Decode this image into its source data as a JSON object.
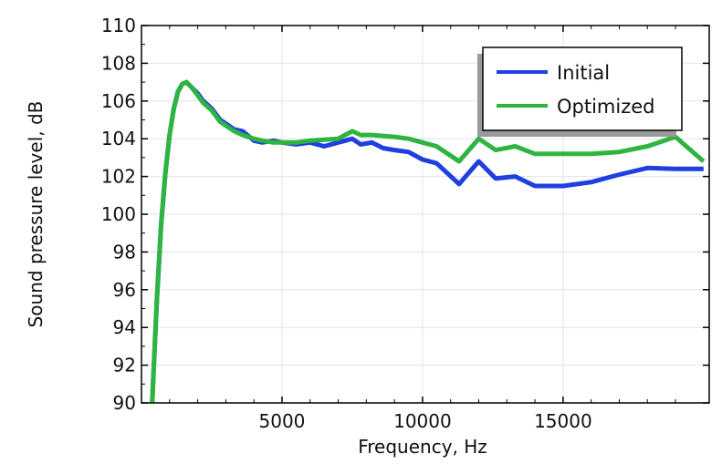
{
  "chart_data": {
    "type": "line",
    "xlabel": "Frequency, Hz",
    "ylabel": "Sound pressure level, dB",
    "xlim": [
      0,
      20200
    ],
    "ylim": [
      90,
      110
    ],
    "xticks": [
      5000,
      10000,
      15000
    ],
    "yticks": [
      90,
      92,
      94,
      96,
      98,
      100,
      102,
      104,
      106,
      108,
      110
    ],
    "grid": true,
    "legend_position": "top-right",
    "series": [
      {
        "name": "Initial",
        "color": "#1f3fe0",
        "x": [
          380,
          550,
          700,
          850,
          1000,
          1150,
          1300,
          1450,
          1600,
          1800,
          2000,
          2200,
          2500,
          2800,
          3000,
          3300,
          3600,
          4000,
          4300,
          4700,
          5000,
          5500,
          6000,
          6500,
          7000,
          7500,
          7800,
          8200,
          8600,
          9000,
          9500,
          10000,
          10500,
          11300,
          12000,
          12600,
          13300,
          14000,
          15000,
          16000,
          17000,
          18000,
          19000,
          20000
        ],
        "y": [
          90,
          95.5,
          99.5,
          102.2,
          104.2,
          105.6,
          106.5,
          106.9,
          107.0,
          106.7,
          106.4,
          106.0,
          105.6,
          105.0,
          104.8,
          104.5,
          104.4,
          103.9,
          103.8,
          103.9,
          103.8,
          103.7,
          103.8,
          103.6,
          103.8,
          104.0,
          103.7,
          103.8,
          103.5,
          103.4,
          103.3,
          102.9,
          102.7,
          101.6,
          102.8,
          101.9,
          102.0,
          101.5,
          101.5,
          101.7,
          102.1,
          102.45,
          102.4,
          102.4
        ]
      },
      {
        "name": "Optimized",
        "color": "#2db540",
        "x": [
          380,
          550,
          700,
          850,
          1000,
          1150,
          1300,
          1450,
          1600,
          1800,
          2000,
          2200,
          2500,
          2800,
          3000,
          3300,
          3600,
          4000,
          4300,
          4700,
          5000,
          5500,
          6000,
          6500,
          7000,
          7500,
          7800,
          8200,
          8600,
          9000,
          9500,
          10000,
          10500,
          11300,
          12000,
          12600,
          13300,
          14000,
          15000,
          16000,
          17000,
          18000,
          19000,
          20000
        ],
        "y": [
          90,
          95.5,
          99.5,
          102.2,
          104.2,
          105.6,
          106.5,
          106.9,
          107.0,
          106.7,
          106.3,
          105.9,
          105.5,
          104.9,
          104.7,
          104.4,
          104.2,
          104.0,
          103.9,
          103.8,
          103.8,
          103.8,
          103.9,
          103.95,
          104.0,
          104.4,
          104.2,
          104.2,
          104.15,
          104.1,
          104.0,
          103.8,
          103.6,
          102.8,
          104.0,
          103.4,
          103.6,
          103.2,
          103.2,
          103.2,
          103.3,
          103.6,
          104.1,
          102.8
        ]
      }
    ]
  }
}
